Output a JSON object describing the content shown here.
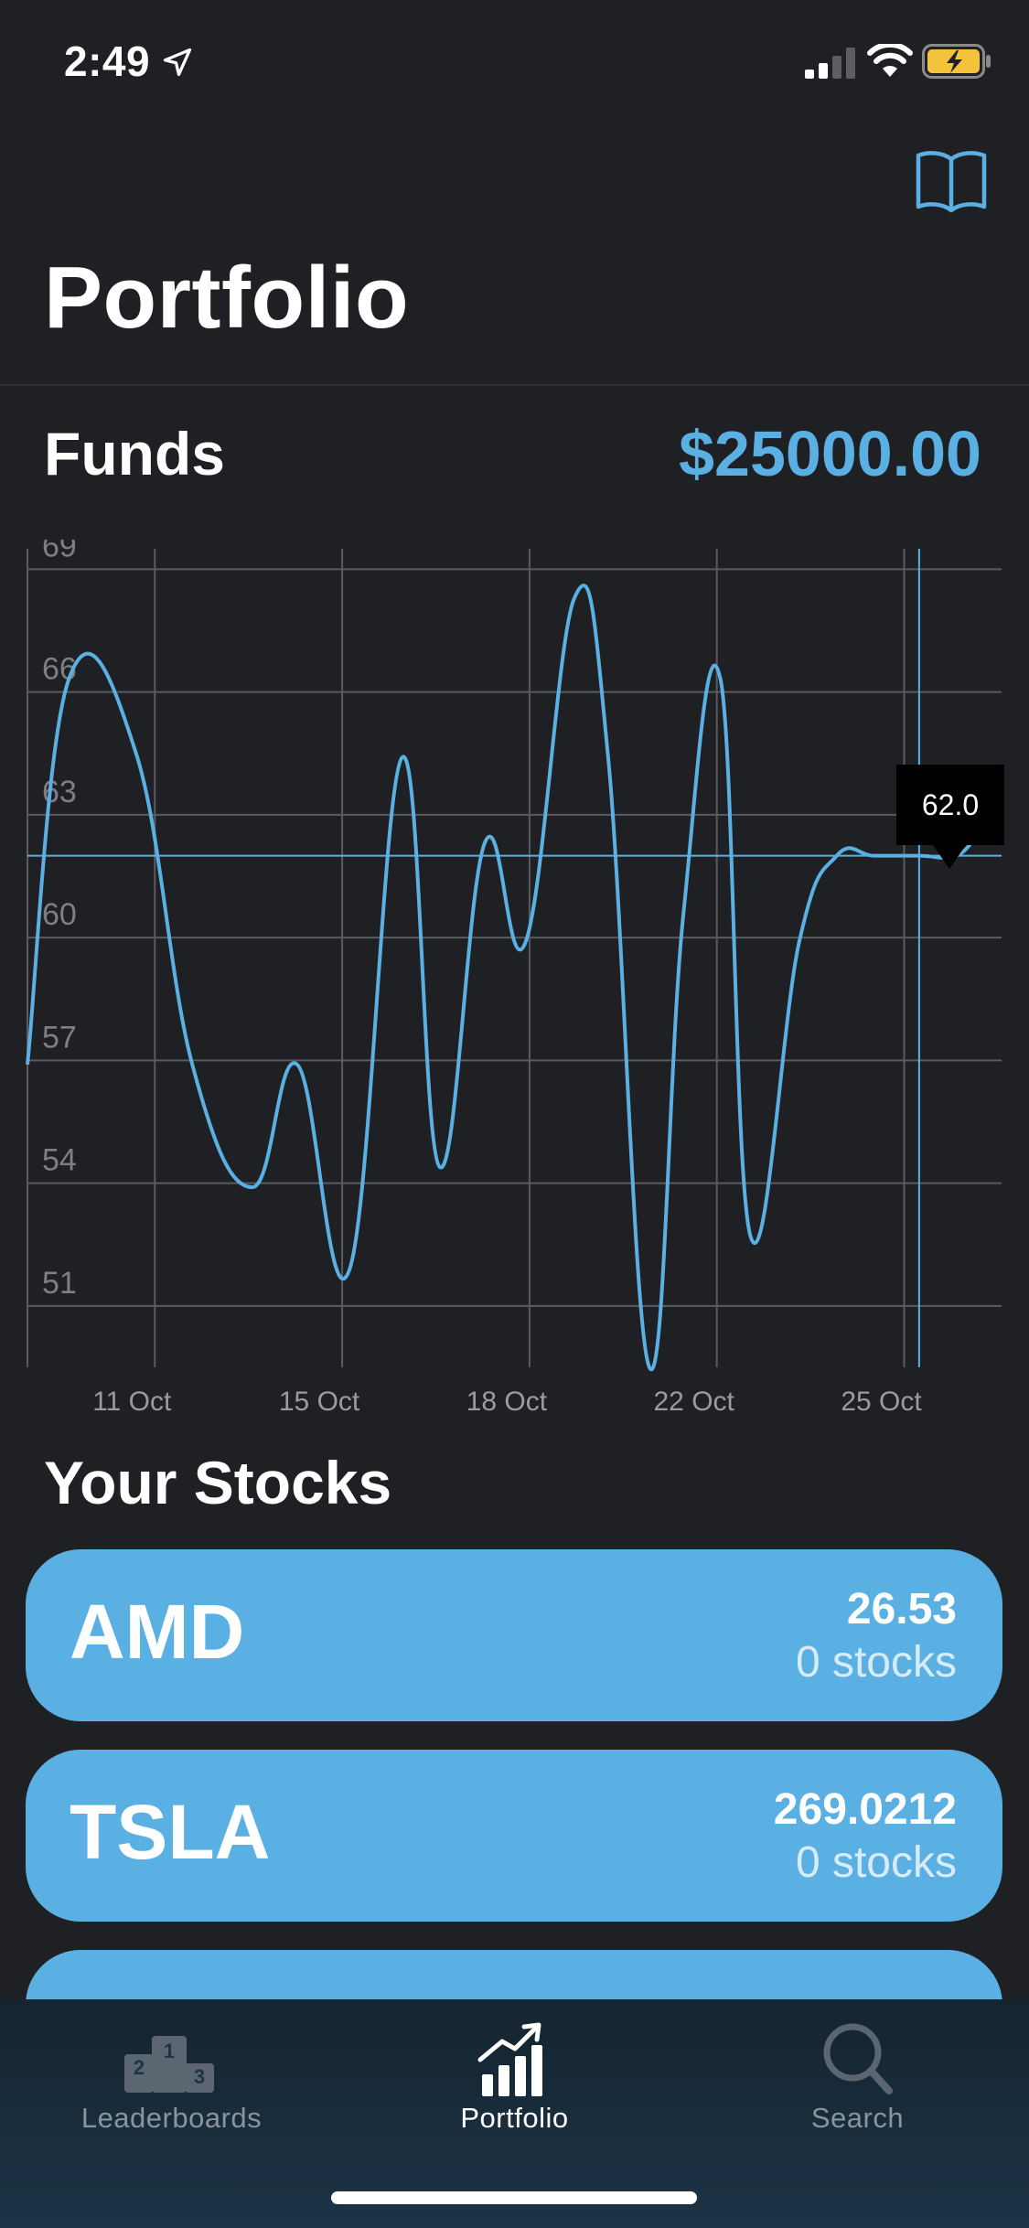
{
  "status_bar": {
    "time": "2:49",
    "icons": [
      "location-arrow-icon",
      "cellular-signal-icon",
      "wifi-icon",
      "battery-charging-icon"
    ]
  },
  "header": {
    "title": "Portfolio",
    "action_icon": "book-icon"
  },
  "funds": {
    "label": "Funds",
    "value": "$25000.00"
  },
  "colors": {
    "accent": "#5ab0e2",
    "background": "#1f2024",
    "card": "#5ab0e2",
    "tab_bar": "#1c3447",
    "grid": "#595b60"
  },
  "chart_data": {
    "type": "line",
    "ylim": [
      49.5,
      69.5
    ],
    "y_ticks": [
      "69",
      "66",
      "63",
      "60",
      "57",
      "54",
      "51"
    ],
    "y_tick_values": [
      69,
      66,
      63,
      60,
      57,
      54,
      51
    ],
    "xlim": [
      0,
      26
    ],
    "x_ticks": [
      "11 Oct",
      "15 Oct",
      "18 Oct",
      "22 Oct",
      "25 Oct"
    ],
    "x_tick_positions": [
      3.4,
      8.4,
      13.4,
      18.4,
      23.4
    ],
    "grid": true,
    "series": [
      {
        "color": "#5ab0e2",
        "x": [
          0,
          1.1,
          2.9,
          4.4,
          6.0,
          7.2,
          8.6,
          10.0,
          11.0,
          12.2,
          13.3,
          14.6,
          15.5,
          16.6,
          17.5,
          18.5,
          19.3,
          20.6,
          21.6,
          22.6,
          23.8,
          24.8,
          25.4
        ],
        "y": [
          56.9,
          66.3,
          64.5,
          56.9,
          53.9,
          56.9,
          51.9,
          64.4,
          54.4,
          62.3,
          59.9,
          68.3,
          64.4,
          49.5,
          60.5,
          66.3,
          52.7,
          59.9,
          62.0,
          62.0,
          62.0,
          62.0,
          62.6
        ]
      }
    ],
    "crosshair": {
      "x": 23.8,
      "y": 62.0,
      "label": "62.0"
    }
  },
  "stocks_section": {
    "title": "Your Stocks",
    "items": [
      {
        "symbol": "AMD",
        "price": "26.53",
        "quantity": "0 stocks"
      },
      {
        "symbol": "TSLA",
        "price": "269.0212",
        "quantity": "0 stocks"
      },
      {
        "symbol": "",
        "price": "",
        "quantity": ""
      }
    ]
  },
  "tab_bar": {
    "tabs": [
      {
        "label": "Leaderboards",
        "icon": "podium-icon",
        "active": false
      },
      {
        "label": "Portfolio",
        "icon": "chart-trending-icon",
        "active": true
      },
      {
        "label": "Search",
        "icon": "magnifier-icon",
        "active": false
      }
    ]
  }
}
